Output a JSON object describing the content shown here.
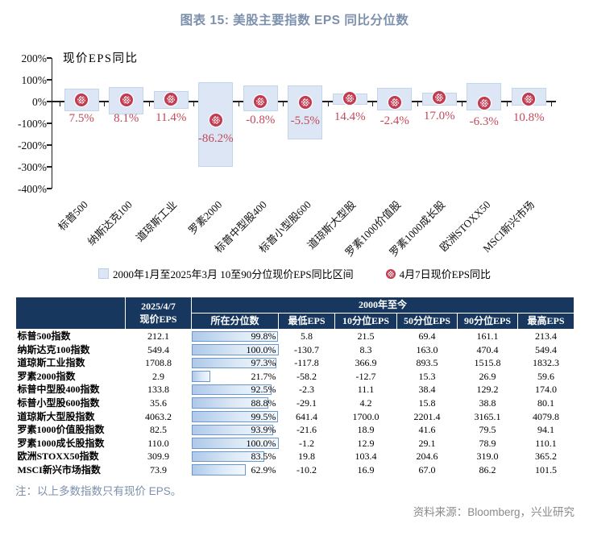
{
  "title": "图表 15: 美股主要指数 EPS 同比分位数",
  "colors": {
    "title_text": "#7c90ac",
    "note_text": "#7d90ab",
    "source_text": "#8a8a8a",
    "header_bg": "#17375e",
    "range_fill": "#dce6f4",
    "range_border": "#c3d5ec",
    "marker_red": "#c23b50",
    "value_label_red": "#c24a5c",
    "databar_border": "#6b97cf",
    "axis": "#1f1f1f"
  },
  "chart_data": {
    "type": "bar",
    "subtype": "floating-percentile-range-with-scatter-markers",
    "plot_label": "现价EPS同比",
    "categories": [
      "标普500",
      "纳斯达克100",
      "道琼斯工业",
      "罗素2000",
      "标普中型股400",
      "标普小型股600",
      "道琼斯大型股",
      "罗素1000价值股",
      "罗素1000成长股",
      "欧洲STOXX50",
      "MSCI新兴市场"
    ],
    "series": [
      {
        "name": "2000年1月至2025年3月 10至90分位现价EPS同比区间",
        "type": "range",
        "high": [
          60,
          67,
          48,
          89,
          74,
          74,
          37,
          62,
          40,
          85,
          62
        ],
        "low": [
          -45,
          -58,
          -35,
          -300,
          -44,
          -174,
          -16,
          -42,
          -20,
          -42,
          -20
        ]
      },
      {
        "name": "4月7日现价EPS同比",
        "type": "scatter",
        "values": [
          7.5,
          8.1,
          11.4,
          -86.2,
          -0.8,
          -5.5,
          14.4,
          -2.4,
          17.0,
          -6.3,
          10.8
        ],
        "labels": [
          "7.5%",
          "8.1%",
          "11.4%",
          "-86.2%",
          "-0.8%",
          "-5.5%",
          "14.4%",
          "-2.4%",
          "17.0%",
          "-6.3%",
          "10.8%"
        ]
      }
    ],
    "ylim": [
      -400,
      200
    ],
    "yticks": [
      {
        "value": 200,
        "label": "200%"
      },
      {
        "value": 100,
        "label": "100%"
      },
      {
        "value": 0,
        "label": "0%"
      },
      {
        "value": -100,
        "label": "-100%"
      },
      {
        "value": -200,
        "label": "-200%"
      },
      {
        "value": -300,
        "label": "-300%"
      },
      {
        "value": -400,
        "label": "-400%"
      }
    ],
    "grid": false,
    "legend_position": "bottom"
  },
  "table": {
    "header": {
      "blank": "",
      "date": "2025/4/7",
      "price_eps": "现价EPS",
      "group": "2000年至今",
      "cols": [
        "所在分位数",
        "最低EPS",
        "10分位EPS",
        "50分位EPS",
        "90分位EPS",
        "最高EPS"
      ]
    },
    "rows": [
      {
        "name": "标普500指数",
        "eps": "212.1",
        "pct": 99.8,
        "pct_label": "99.8%",
        "min": "5.8",
        "p10": "21.5",
        "p50": "69.4",
        "p90": "161.1",
        "max": "213.4"
      },
      {
        "name": "纳斯达克100指数",
        "eps": "549.4",
        "pct": 100.0,
        "pct_label": "100.0%",
        "min": "-130.7",
        "p10": "8.3",
        "p50": "163.0",
        "p90": "470.4",
        "max": "549.4"
      },
      {
        "name": "道琼斯工业指数",
        "eps": "1708.8",
        "pct": 97.3,
        "pct_label": "97.3%",
        "min": "-117.8",
        "p10": "366.9",
        "p50": "893.5",
        "p90": "1515.8",
        "max": "1832.3"
      },
      {
        "name": "罗素2000指数",
        "eps": "2.9",
        "pct": 21.7,
        "pct_label": "21.7%",
        "min": "-58.2",
        "p10": "-12.7",
        "p50": "15.3",
        "p90": "26.9",
        "max": "59.6"
      },
      {
        "name": "标普中型股400指数",
        "eps": "133.8",
        "pct": 92.5,
        "pct_label": "92.5%",
        "min": "-2.3",
        "p10": "11.1",
        "p50": "38.4",
        "p90": "129.2",
        "max": "174.0"
      },
      {
        "name": "标普小型股600指数",
        "eps": "35.6",
        "pct": 88.8,
        "pct_label": "88.8%",
        "min": "-29.1",
        "p10": "4.2",
        "p50": "15.8",
        "p90": "38.8",
        "max": "80.1"
      },
      {
        "name": "道琼斯大型股指数",
        "eps": "4063.2",
        "pct": 99.5,
        "pct_label": "99.5%",
        "min": "641.4",
        "p10": "1700.0",
        "p50": "2201.4",
        "p90": "3165.1",
        "max": "4079.8"
      },
      {
        "name": "罗素1000价值股指数",
        "eps": "82.5",
        "pct": 93.9,
        "pct_label": "93.9%",
        "min": "-21.6",
        "p10": "18.9",
        "p50": "41.6",
        "p90": "79.5",
        "max": "94.1"
      },
      {
        "name": "罗素1000成长股指数",
        "eps": "110.0",
        "pct": 100.0,
        "pct_label": "100.0%",
        "min": "-1.2",
        "p10": "12.9",
        "p50": "29.1",
        "p90": "78.9",
        "max": "110.1"
      },
      {
        "name": "欧洲STOXX50指数",
        "eps": "309.9",
        "pct": 83.5,
        "pct_label": "83.5%",
        "min": "19.8",
        "p10": "103.4",
        "p50": "204.6",
        "p90": "319.0",
        "max": "365.2"
      },
      {
        "name": "MSCI新兴市场指数",
        "eps": "73.9",
        "pct": 62.9,
        "pct_label": "62.9%",
        "min": "-10.2",
        "p10": "16.9",
        "p50": "67.0",
        "p90": "86.2",
        "max": "101.5"
      }
    ]
  },
  "note": "注：以上多数指数只有现价 EPS。",
  "source": "资料来源：Bloomberg，兴业研究"
}
